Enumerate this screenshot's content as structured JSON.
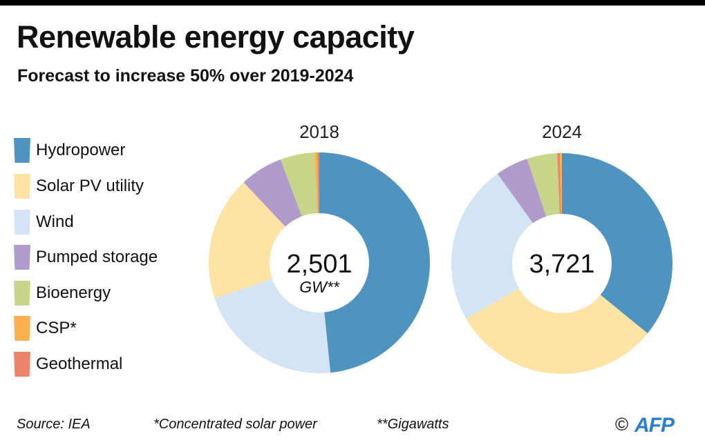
{
  "header": {
    "title": "Renewable energy capacity",
    "subtitle": "Forecast to increase 50% over 2019-2024"
  },
  "legend": [
    {
      "label": "Hydropower",
      "color": "#4f94c1"
    },
    {
      "label": "Solar PV utility",
      "color": "#fde3a4"
    },
    {
      "label": "Wind",
      "color": "#d3e4f4"
    },
    {
      "label": "Pumped storage",
      "color": "#b19bca"
    },
    {
      "label": "Bioenergy",
      "color": "#c8d68b"
    },
    {
      "label": "CSP*",
      "color": "#fbb24e"
    },
    {
      "label": "Geothermal",
      "color": "#eb8468"
    }
  ],
  "footer": {
    "source": "Source: IEA",
    "note_csp": "*Concentrated solar power",
    "note_gw": "**Gigawatts",
    "copyright": "©",
    "brand": "AFP"
  },
  "chart_data": [
    {
      "type": "pie",
      "style": "donut",
      "title": "2018",
      "center_value": "2,501",
      "center_unit": "GW**",
      "total_gw": 2501,
      "unit": "percent of total (estimated)",
      "slices": [
        {
          "name": "Hydropower",
          "value": 48.4,
          "color": "#4f94c1"
        },
        {
          "name": "Wind",
          "value": 21.4,
          "color": "#d3e4f4"
        },
        {
          "name": "Solar PV utility",
          "value": 18.2,
          "color": "#fde3a4"
        },
        {
          "name": "Pumped storage",
          "value": 6.3,
          "color": "#b19bca"
        },
        {
          "name": "Bioenergy",
          "value": 5.0,
          "color": "#c8d68b"
        },
        {
          "name": "CSP*",
          "value": 0.4,
          "color": "#fbb24e"
        },
        {
          "name": "Geothermal",
          "value": 0.3,
          "color": "#eb8468"
        }
      ]
    },
    {
      "type": "pie",
      "style": "donut",
      "title": "2024",
      "center_value": "3,721",
      "center_unit": "",
      "total_gw": 3721,
      "unit": "percent of total (estimated)",
      "slices": [
        {
          "name": "Hydropower",
          "value": 35.9,
          "color": "#4f94c1"
        },
        {
          "name": "Solar PV utility",
          "value": 30.8,
          "color": "#fde3a4"
        },
        {
          "name": "Wind",
          "value": 23.4,
          "color": "#d3e4f4"
        },
        {
          "name": "Pumped storage",
          "value": 4.8,
          "color": "#b19bca"
        },
        {
          "name": "Bioenergy",
          "value": 4.4,
          "color": "#c8d68b"
        },
        {
          "name": "Geothermal",
          "value": 0.4,
          "color": "#eb8468"
        },
        {
          "name": "CSP*",
          "value": 0.3,
          "color": "#fbb24e"
        }
      ]
    }
  ]
}
